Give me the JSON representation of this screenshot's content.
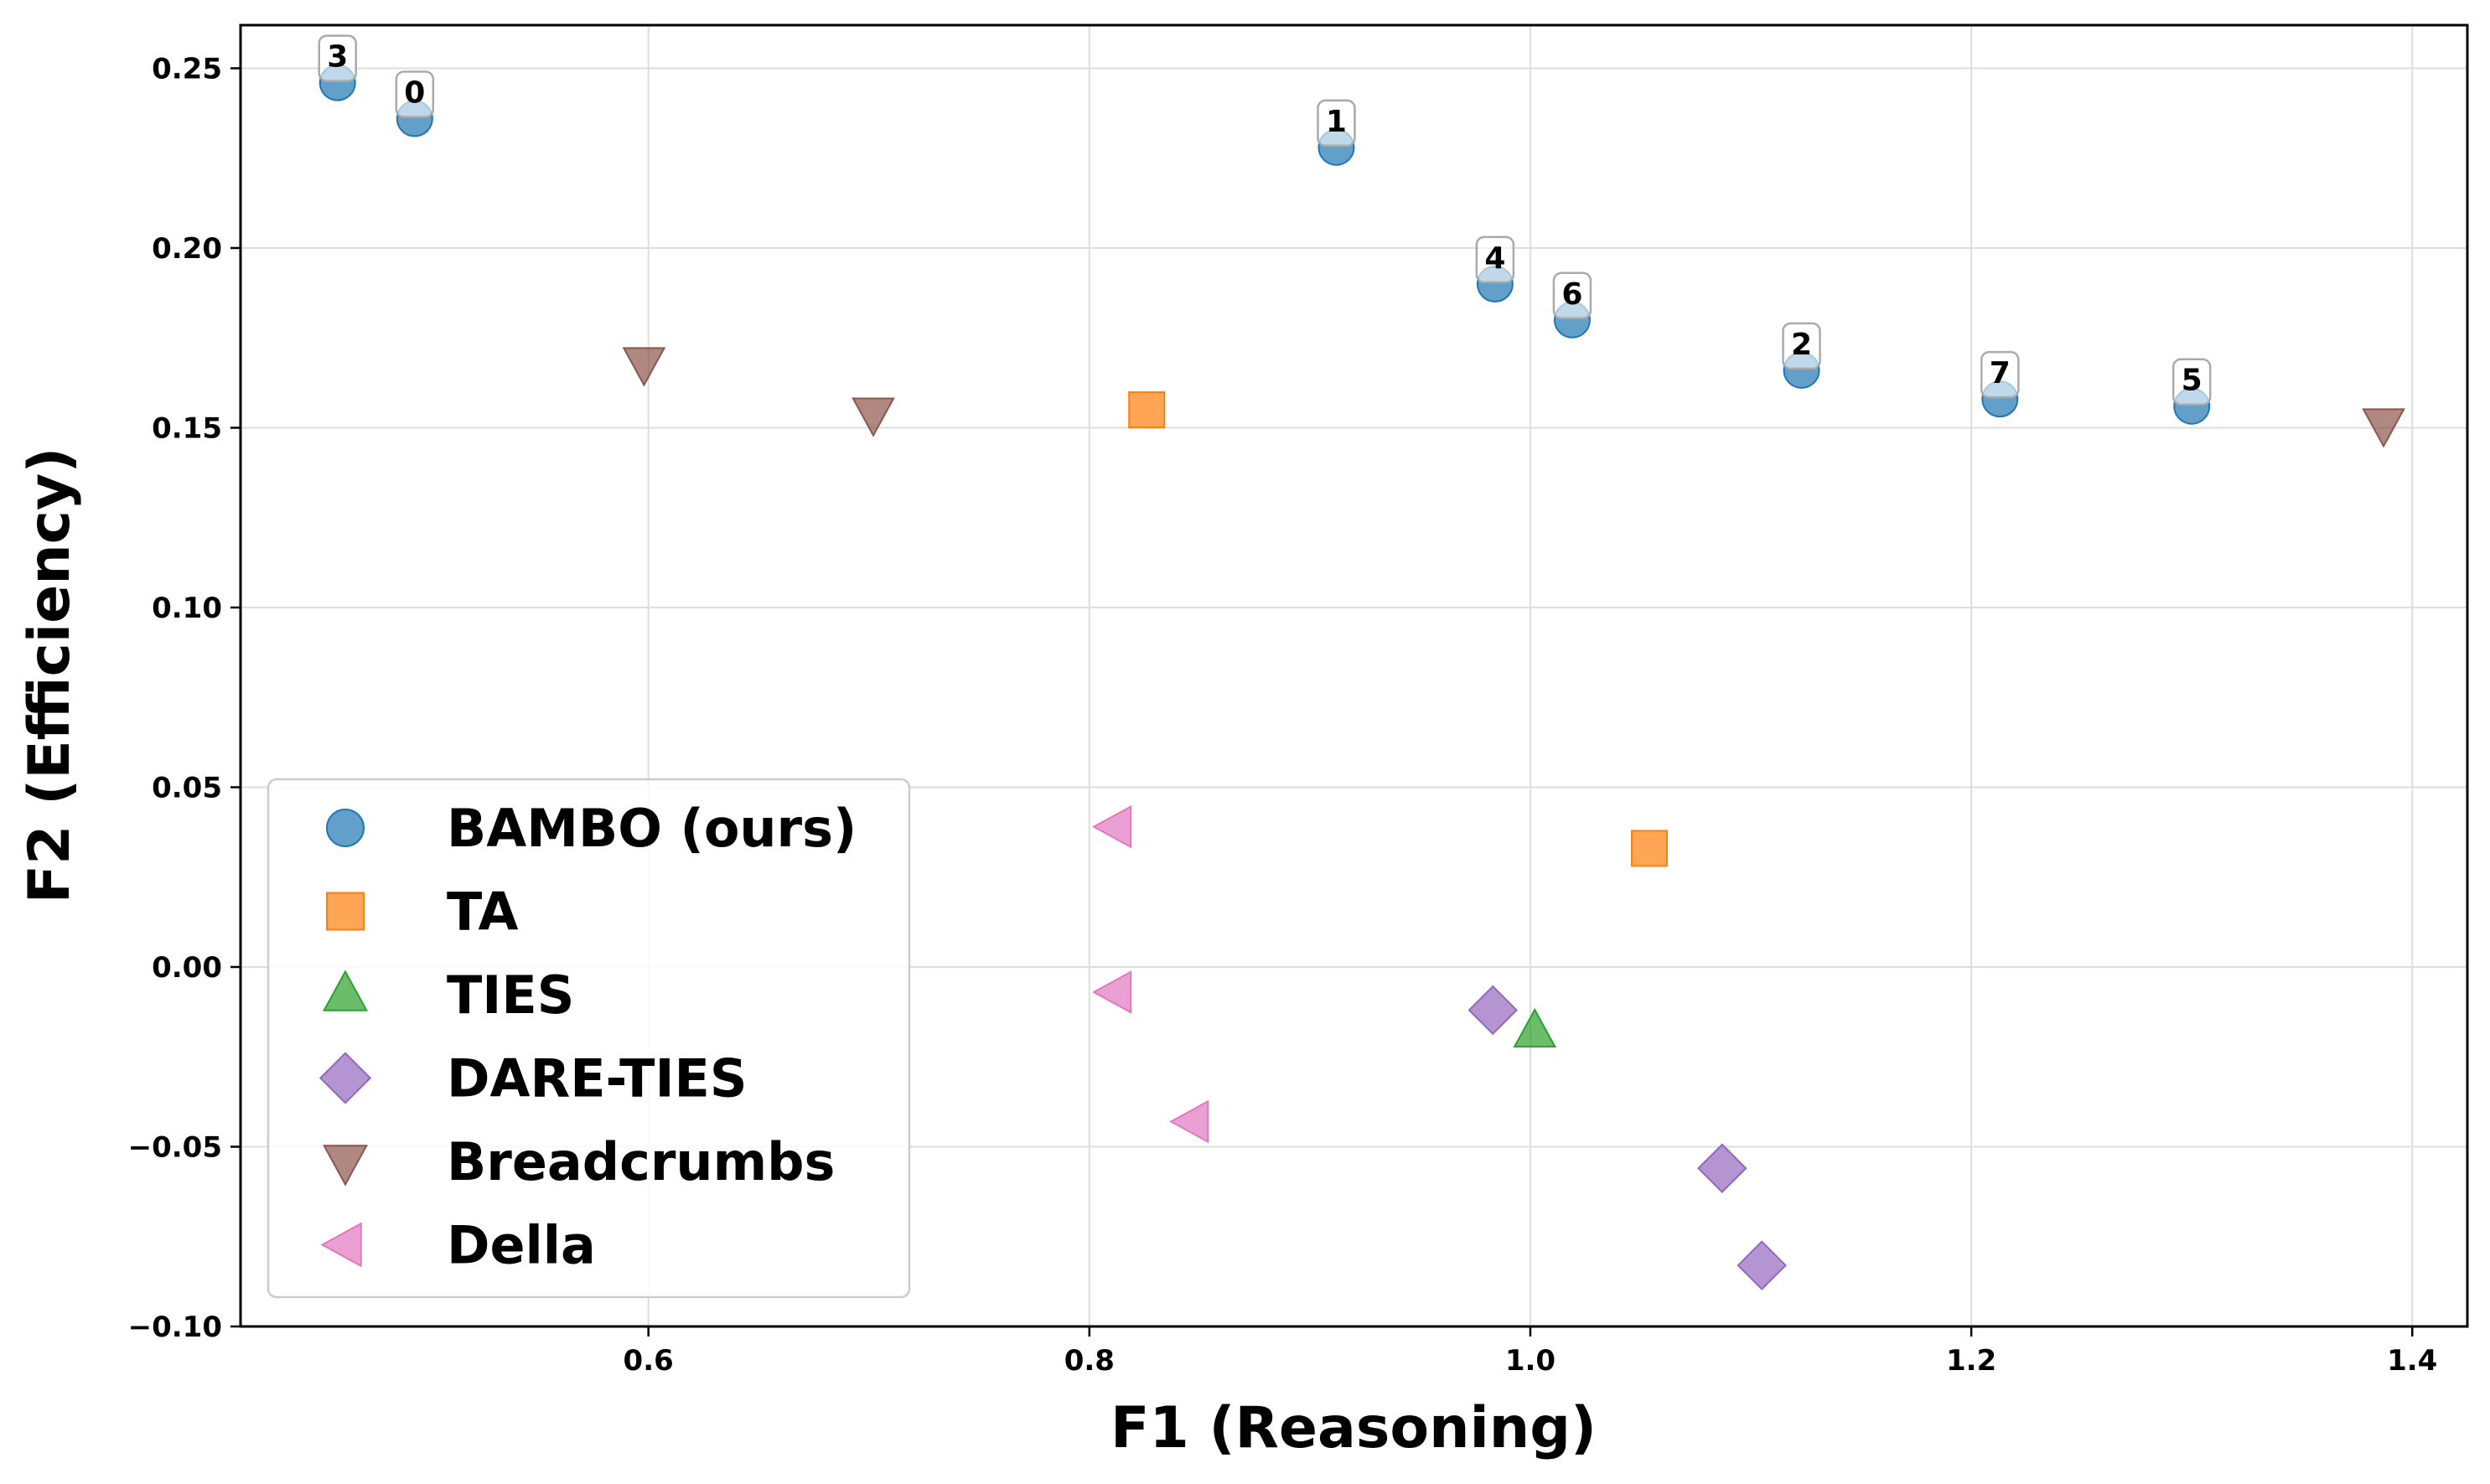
{
  "chart_data": {
    "type": "scatter",
    "title": "",
    "xlabel": "F1 (Reasoning)",
    "ylabel": "F2 (Efficiency)",
    "xlim": [
      0.415,
      1.425
    ],
    "ylim": [
      -0.1,
      0.262
    ],
    "xticks": [
      0.6,
      0.8,
      1.0,
      1.2,
      1.4
    ],
    "xtick_labels": [
      "0.6",
      "0.8",
      "1.0",
      "1.2",
      "1.4"
    ],
    "yticks": [
      -0.1,
      -0.05,
      0.0,
      0.05,
      0.1,
      0.15,
      0.2,
      0.25
    ],
    "ytick_labels": [
      "−0.10",
      "−0.05",
      "0.00",
      "0.05",
      "0.10",
      "0.15",
      "0.20",
      "0.25"
    ],
    "grid": true,
    "legend_position": "lower-left",
    "series": [
      {
        "name": "BAMBO (ours)",
        "marker": "circle",
        "color": "#1f77b4",
        "points": [
          {
            "x": 0.459,
            "y": 0.246,
            "label": "3"
          },
          {
            "x": 0.494,
            "y": 0.236,
            "label": "0"
          },
          {
            "x": 0.912,
            "y": 0.228,
            "label": "1"
          },
          {
            "x": 0.984,
            "y": 0.19,
            "label": "4"
          },
          {
            "x": 1.019,
            "y": 0.18,
            "label": "6"
          },
          {
            "x": 1.123,
            "y": 0.166,
            "label": "2"
          },
          {
            "x": 1.213,
            "y": 0.158,
            "label": "7"
          },
          {
            "x": 1.3,
            "y": 0.156,
            "label": "5"
          }
        ]
      },
      {
        "name": "TA",
        "marker": "square",
        "color": "#ff7f0e",
        "points": [
          {
            "x": 0.826,
            "y": 0.155
          },
          {
            "x": 1.054,
            "y": 0.033
          }
        ]
      },
      {
        "name": "TIES",
        "marker": "triangle-up",
        "color": "#2ca02c",
        "points": [
          {
            "x": 1.002,
            "y": -0.018
          }
        ]
      },
      {
        "name": "DARE-TIES",
        "marker": "diamond",
        "color": "#9467bd",
        "points": [
          {
            "x": 0.983,
            "y": -0.012
          },
          {
            "x": 1.087,
            "y": -0.056
          },
          {
            "x": 1.105,
            "y": -0.083
          }
        ]
      },
      {
        "name": "Breadcrumbs",
        "marker": "triangle-down",
        "color": "#8c564b",
        "points": [
          {
            "x": 0.598,
            "y": 0.168
          },
          {
            "x": 0.702,
            "y": 0.154
          },
          {
            "x": 1.387,
            "y": 0.151
          }
        ]
      },
      {
        "name": "Della",
        "marker": "triangle-left",
        "color": "#e377c2",
        "points": [
          {
            "x": 0.812,
            "y": 0.039
          },
          {
            "x": 0.812,
            "y": -0.007
          },
          {
            "x": 0.847,
            "y": -0.043
          }
        ]
      }
    ]
  }
}
